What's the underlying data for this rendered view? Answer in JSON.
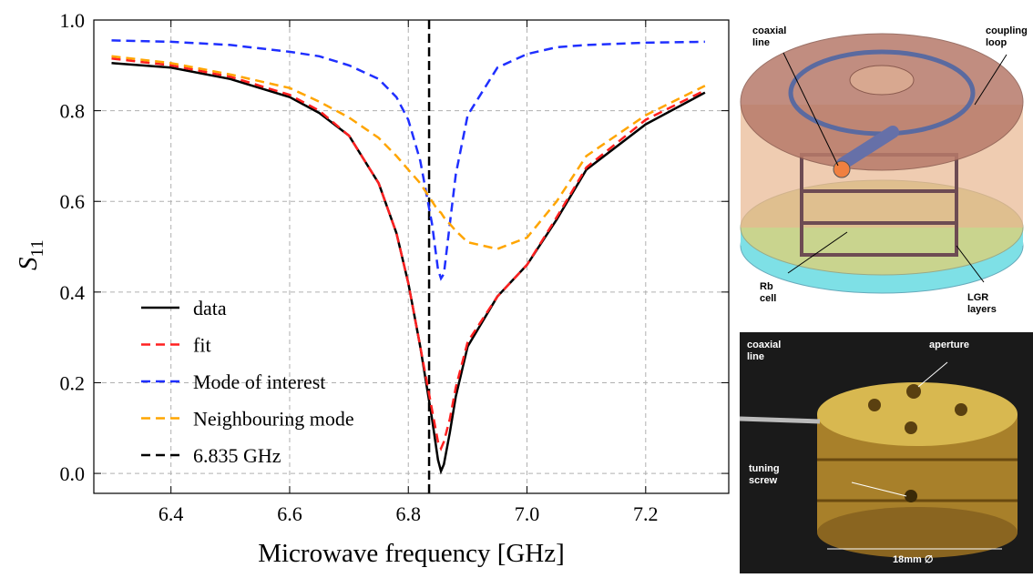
{
  "chart_data": {
    "type": "line",
    "xlabel": "Microwave frequency [GHz]",
    "ylabel": {
      "main": "S",
      "sub": "11"
    },
    "x": [
      6.3,
      6.4,
      6.5,
      6.6,
      6.65,
      6.7,
      6.75,
      6.78,
      6.8,
      6.82,
      6.84,
      6.85,
      6.855,
      6.86,
      6.87,
      6.88,
      6.9,
      6.95,
      7.0,
      7.05,
      7.1,
      7.2,
      7.3
    ],
    "series": [
      {
        "name": "data",
        "color": "#000000",
        "dashed": false,
        "values": [
          0.905,
          0.895,
          0.87,
          0.83,
          0.795,
          0.745,
          0.64,
          0.53,
          0.42,
          0.28,
          0.12,
          0.03,
          0.005,
          0.02,
          0.09,
          0.17,
          0.28,
          0.39,
          0.46,
          0.56,
          0.67,
          0.77,
          0.84
        ]
      },
      {
        "name": "fit",
        "color": "#ff2020",
        "dashed": true,
        "values": [
          0.915,
          0.9,
          0.875,
          0.835,
          0.8,
          0.745,
          0.64,
          0.53,
          0.42,
          0.28,
          0.14,
          0.07,
          0.055,
          0.07,
          0.12,
          0.19,
          0.29,
          0.39,
          0.46,
          0.565,
          0.675,
          0.78,
          0.845
        ]
      },
      {
        "name": "Mode of interest",
        "color": "#1f2fff",
        "dashed": true,
        "values": [
          0.955,
          0.952,
          0.945,
          0.93,
          0.92,
          0.9,
          0.87,
          0.83,
          0.78,
          0.69,
          0.55,
          0.45,
          0.43,
          0.44,
          0.55,
          0.66,
          0.79,
          0.895,
          0.925,
          0.94,
          0.945,
          0.95,
          0.952
        ]
      },
      {
        "name": "Neighbouring mode",
        "color": "#ffa500",
        "dashed": true,
        "values": [
          0.92,
          0.905,
          0.88,
          0.85,
          0.82,
          0.785,
          0.74,
          0.7,
          0.67,
          0.64,
          0.6,
          0.58,
          0.575,
          0.565,
          0.55,
          0.535,
          0.51,
          0.495,
          0.52,
          0.6,
          0.7,
          0.79,
          0.855
        ]
      }
    ],
    "markers": [
      {
        "name": "6.835 GHz",
        "x": 6.835,
        "color": "#000000"
      }
    ],
    "xlim": [
      6.27,
      7.34
    ],
    "ylim": [
      -0.044,
      1.0
    ],
    "xticks": [
      6.4,
      6.6,
      6.8,
      {
        "value": 7,
        "label": "7.0"
      },
      7.2
    ],
    "yticks": [
      {
        "value": 0,
        "label": "0.0"
      },
      0.2,
      0.4,
      0.6,
      0.8,
      {
        "value": 1,
        "label": "1.0"
      }
    ],
    "grid": true,
    "legend": "lower-left"
  },
  "images": {
    "diagram": [
      "coaxial line",
      "coupling loop",
      "Rb cell",
      "LGR layers"
    ],
    "photo": [
      "coaxial line",
      "aperture",
      "tuning screw",
      "18mm ∅"
    ]
  }
}
